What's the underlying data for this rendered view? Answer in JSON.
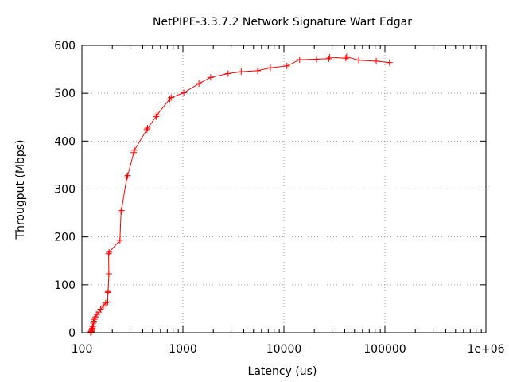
{
  "chart_data": {
    "type": "scatter",
    "title": "NetPIPE-3.3.7.2 Network Signature Wart Edgar",
    "xlabel": "Latency (us)",
    "ylabel": "Througput (Mbps)",
    "xscale": "log",
    "xlim": [
      100,
      1000000
    ],
    "ylim": [
      0,
      600
    ],
    "grid": true,
    "xticks": [
      {
        "value": 100,
        "label": "100"
      },
      {
        "value": 1000,
        "label": "1000"
      },
      {
        "value": 10000,
        "label": "10000"
      },
      {
        "value": 100000,
        "label": "100000"
      },
      {
        "value": 1000000,
        "label": "1e+06"
      }
    ],
    "yticks": [
      {
        "value": 0,
        "label": "0"
      },
      {
        "value": 100,
        "label": "100"
      },
      {
        "value": 200,
        "label": "200"
      },
      {
        "value": 300,
        "label": "300"
      },
      {
        "value": 400,
        "label": "400"
      },
      {
        "value": 500,
        "label": "500"
      },
      {
        "value": 600,
        "label": "600"
      }
    ],
    "series": [
      {
        "color": "#ff0000",
        "marker": "plus",
        "line": true,
        "points": [
          [
            122,
            0.3
          ],
          [
            122,
            0.6
          ],
          [
            123,
            1
          ],
          [
            124,
            2
          ],
          [
            124,
            3
          ],
          [
            125,
            5
          ],
          [
            126,
            7
          ],
          [
            127,
            9
          ],
          [
            128,
            12
          ],
          [
            129,
            16
          ],
          [
            130,
            20
          ],
          [
            131,
            24
          ],
          [
            133,
            28
          ],
          [
            136,
            33
          ],
          [
            141,
            38
          ],
          [
            147,
            43
          ],
          [
            153,
            49
          ],
          [
            163,
            56
          ],
          [
            172,
            62
          ],
          [
            180,
            64
          ],
          [
            181,
            84
          ],
          [
            182,
            86
          ],
          [
            185,
            123
          ],
          [
            184,
            165
          ],
          [
            186,
            168
          ],
          [
            238,
            193
          ],
          [
            244,
            252
          ],
          [
            246,
            255
          ],
          [
            279,
            325
          ],
          [
            284,
            328
          ],
          [
            326,
            376
          ],
          [
            331,
            381
          ],
          [
            440,
            424
          ],
          [
            446,
            427
          ],
          [
            544,
            451
          ],
          [
            556,
            455
          ],
          [
            742,
            488
          ],
          [
            765,
            491
          ],
          [
            1020,
            501
          ],
          [
            1440,
            520
          ],
          [
            1880,
            533
          ],
          [
            2800,
            541
          ],
          [
            3780,
            545
          ],
          [
            5500,
            547
          ],
          [
            7350,
            553
          ],
          [
            10700,
            557
          ],
          [
            14300,
            570
          ],
          [
            21000,
            571
          ],
          [
            27800,
            572
          ],
          [
            28300,
            575
          ],
          [
            41000,
            573
          ],
          [
            41800,
            576
          ],
          [
            55000,
            569
          ],
          [
            82000,
            567
          ],
          [
            111000,
            564
          ]
        ]
      }
    ]
  }
}
